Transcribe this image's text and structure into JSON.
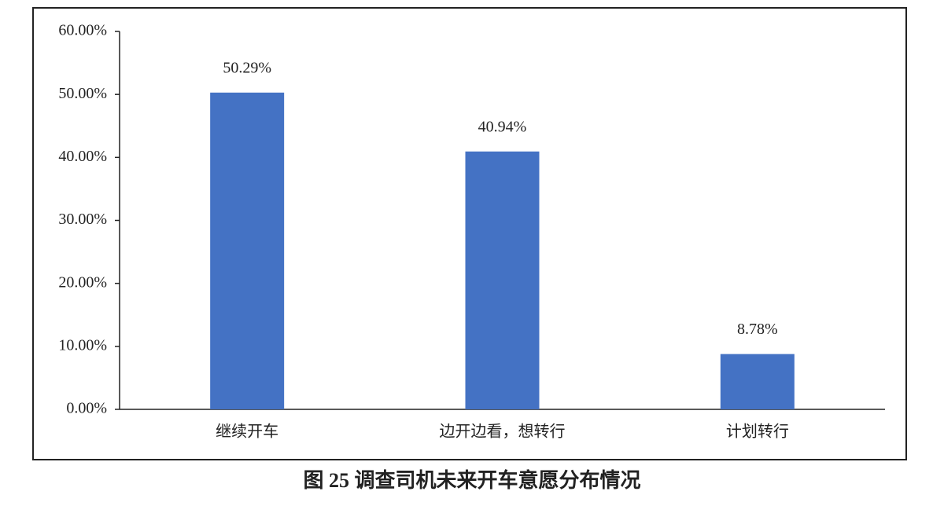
{
  "chart_data": {
    "type": "bar",
    "title": "图 25 调查司机未来开车意愿分布情况",
    "categories": [
      "继续开车",
      "边开边看，想转行",
      "计划转行"
    ],
    "values": [
      50.29,
      40.94,
      8.78
    ],
    "value_labels": [
      "50.29%",
      "40.94%",
      "8.78%"
    ],
    "color": "#4472c4",
    "ylim": [
      0,
      60
    ],
    "yticks": [
      {
        "value": 0,
        "label": "0.00%"
      },
      {
        "value": 10,
        "label": "10.00%"
      },
      {
        "value": 20,
        "label": "20.00%"
      },
      {
        "value": 30,
        "label": "30.00%"
      },
      {
        "value": 40,
        "label": "40.00%"
      },
      {
        "value": 50,
        "label": "50.00%"
      },
      {
        "value": 60,
        "label": "60.00%"
      }
    ],
    "grid": false
  }
}
